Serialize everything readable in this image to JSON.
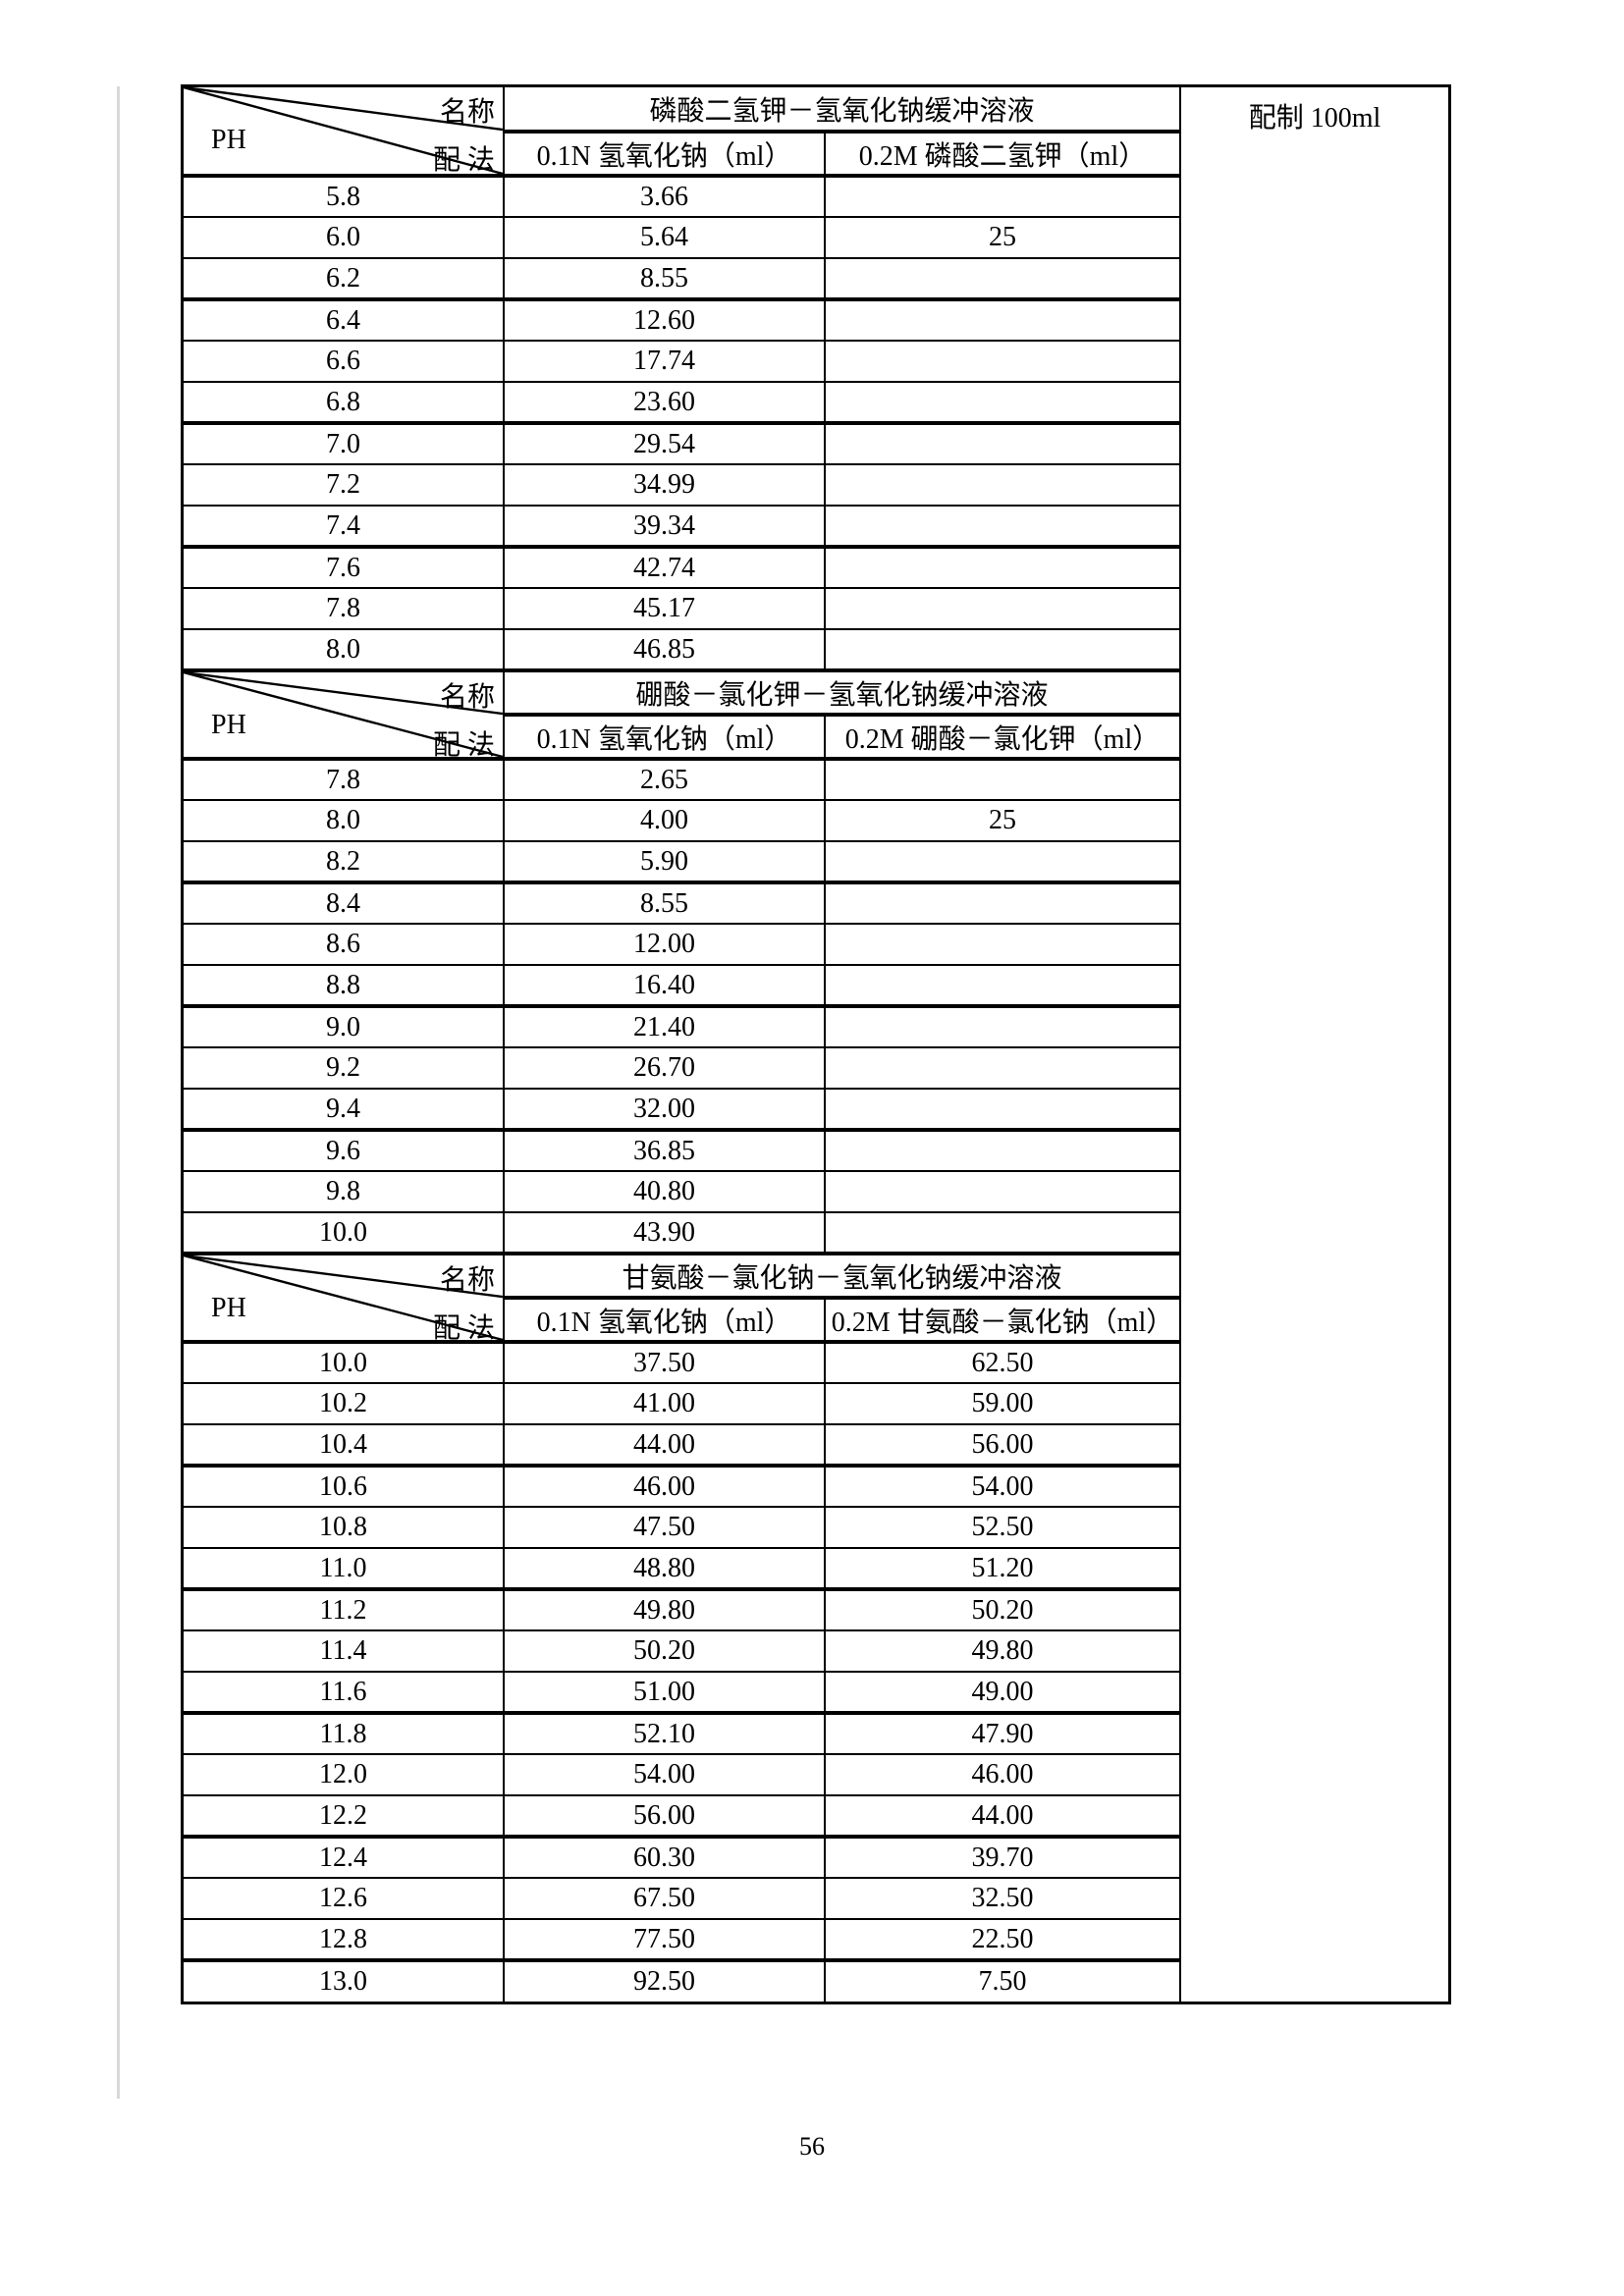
{
  "page_number": "56",
  "prepare_note": "配制 100ml",
  "corner": {
    "name": "名称",
    "method": "配 法",
    "ph": "PH"
  },
  "tables": [
    {
      "title": "磷酸二氢钾－氢氧化钠缓冲溶液",
      "columns": [
        "0.1N 氢氧化钠（ml）",
        "0.2M 磷酸二氢钾（ml）"
      ],
      "rows": [
        [
          "5.8",
          "3.66",
          ""
        ],
        [
          "6.0",
          "5.64",
          "25"
        ],
        [
          "6.2",
          "8.55",
          ""
        ],
        [
          "6.4",
          "12.60",
          ""
        ],
        [
          "6.6",
          "17.74",
          ""
        ],
        [
          "6.8",
          "23.60",
          ""
        ],
        [
          "7.0",
          "29.54",
          ""
        ],
        [
          "7.2",
          "34.99",
          ""
        ],
        [
          "7.4",
          "39.34",
          ""
        ],
        [
          "7.6",
          "42.74",
          ""
        ],
        [
          "7.8",
          "45.17",
          ""
        ],
        [
          "8.0",
          "46.85",
          ""
        ]
      ]
    },
    {
      "title": "硼酸－氯化钾－氢氧化钠缓冲溶液",
      "columns": [
        "0.1N 氢氧化钠（ml）",
        "0.2M 硼酸－氯化钾（ml）"
      ],
      "rows": [
        [
          "7.8",
          "2.65",
          ""
        ],
        [
          "8.0",
          "4.00",
          "25"
        ],
        [
          "8.2",
          "5.90",
          ""
        ],
        [
          "8.4",
          "8.55",
          ""
        ],
        [
          "8.6",
          "12.00",
          ""
        ],
        [
          "8.8",
          "16.40",
          ""
        ],
        [
          "9.0",
          "21.40",
          ""
        ],
        [
          "9.2",
          "26.70",
          ""
        ],
        [
          "9.4",
          "32.00",
          ""
        ],
        [
          "9.6",
          "36.85",
          ""
        ],
        [
          "9.8",
          "40.80",
          ""
        ],
        [
          "10.0",
          "43.90",
          ""
        ]
      ]
    },
    {
      "title": "甘氨酸－氯化钠－氢氧化钠缓冲溶液",
      "columns": [
        "0.1N 氢氧化钠（ml）",
        "0.2M 甘氨酸－氯化钠（ml）"
      ],
      "rows": [
        [
          "10.0",
          "37.50",
          "62.50"
        ],
        [
          "10.2",
          "41.00",
          "59.00"
        ],
        [
          "10.4",
          "44.00",
          "56.00"
        ],
        [
          "10.6",
          "46.00",
          "54.00"
        ],
        [
          "10.8",
          "47.50",
          "52.50"
        ],
        [
          "11.0",
          "48.80",
          "51.20"
        ],
        [
          "11.2",
          "49.80",
          "50.20"
        ],
        [
          "11.4",
          "50.20",
          "49.80"
        ],
        [
          "11.6",
          "51.00",
          "49.00"
        ],
        [
          "11.8",
          "52.10",
          "47.90"
        ],
        [
          "12.0",
          "54.00",
          "46.00"
        ],
        [
          "12.2",
          "56.00",
          "44.00"
        ],
        [
          "12.4",
          "60.30",
          "39.70"
        ],
        [
          "12.6",
          "67.50",
          "32.50"
        ],
        [
          "12.8",
          "77.50",
          "22.50"
        ],
        [
          "13.0",
          "92.50",
          "7.50"
        ]
      ]
    }
  ]
}
